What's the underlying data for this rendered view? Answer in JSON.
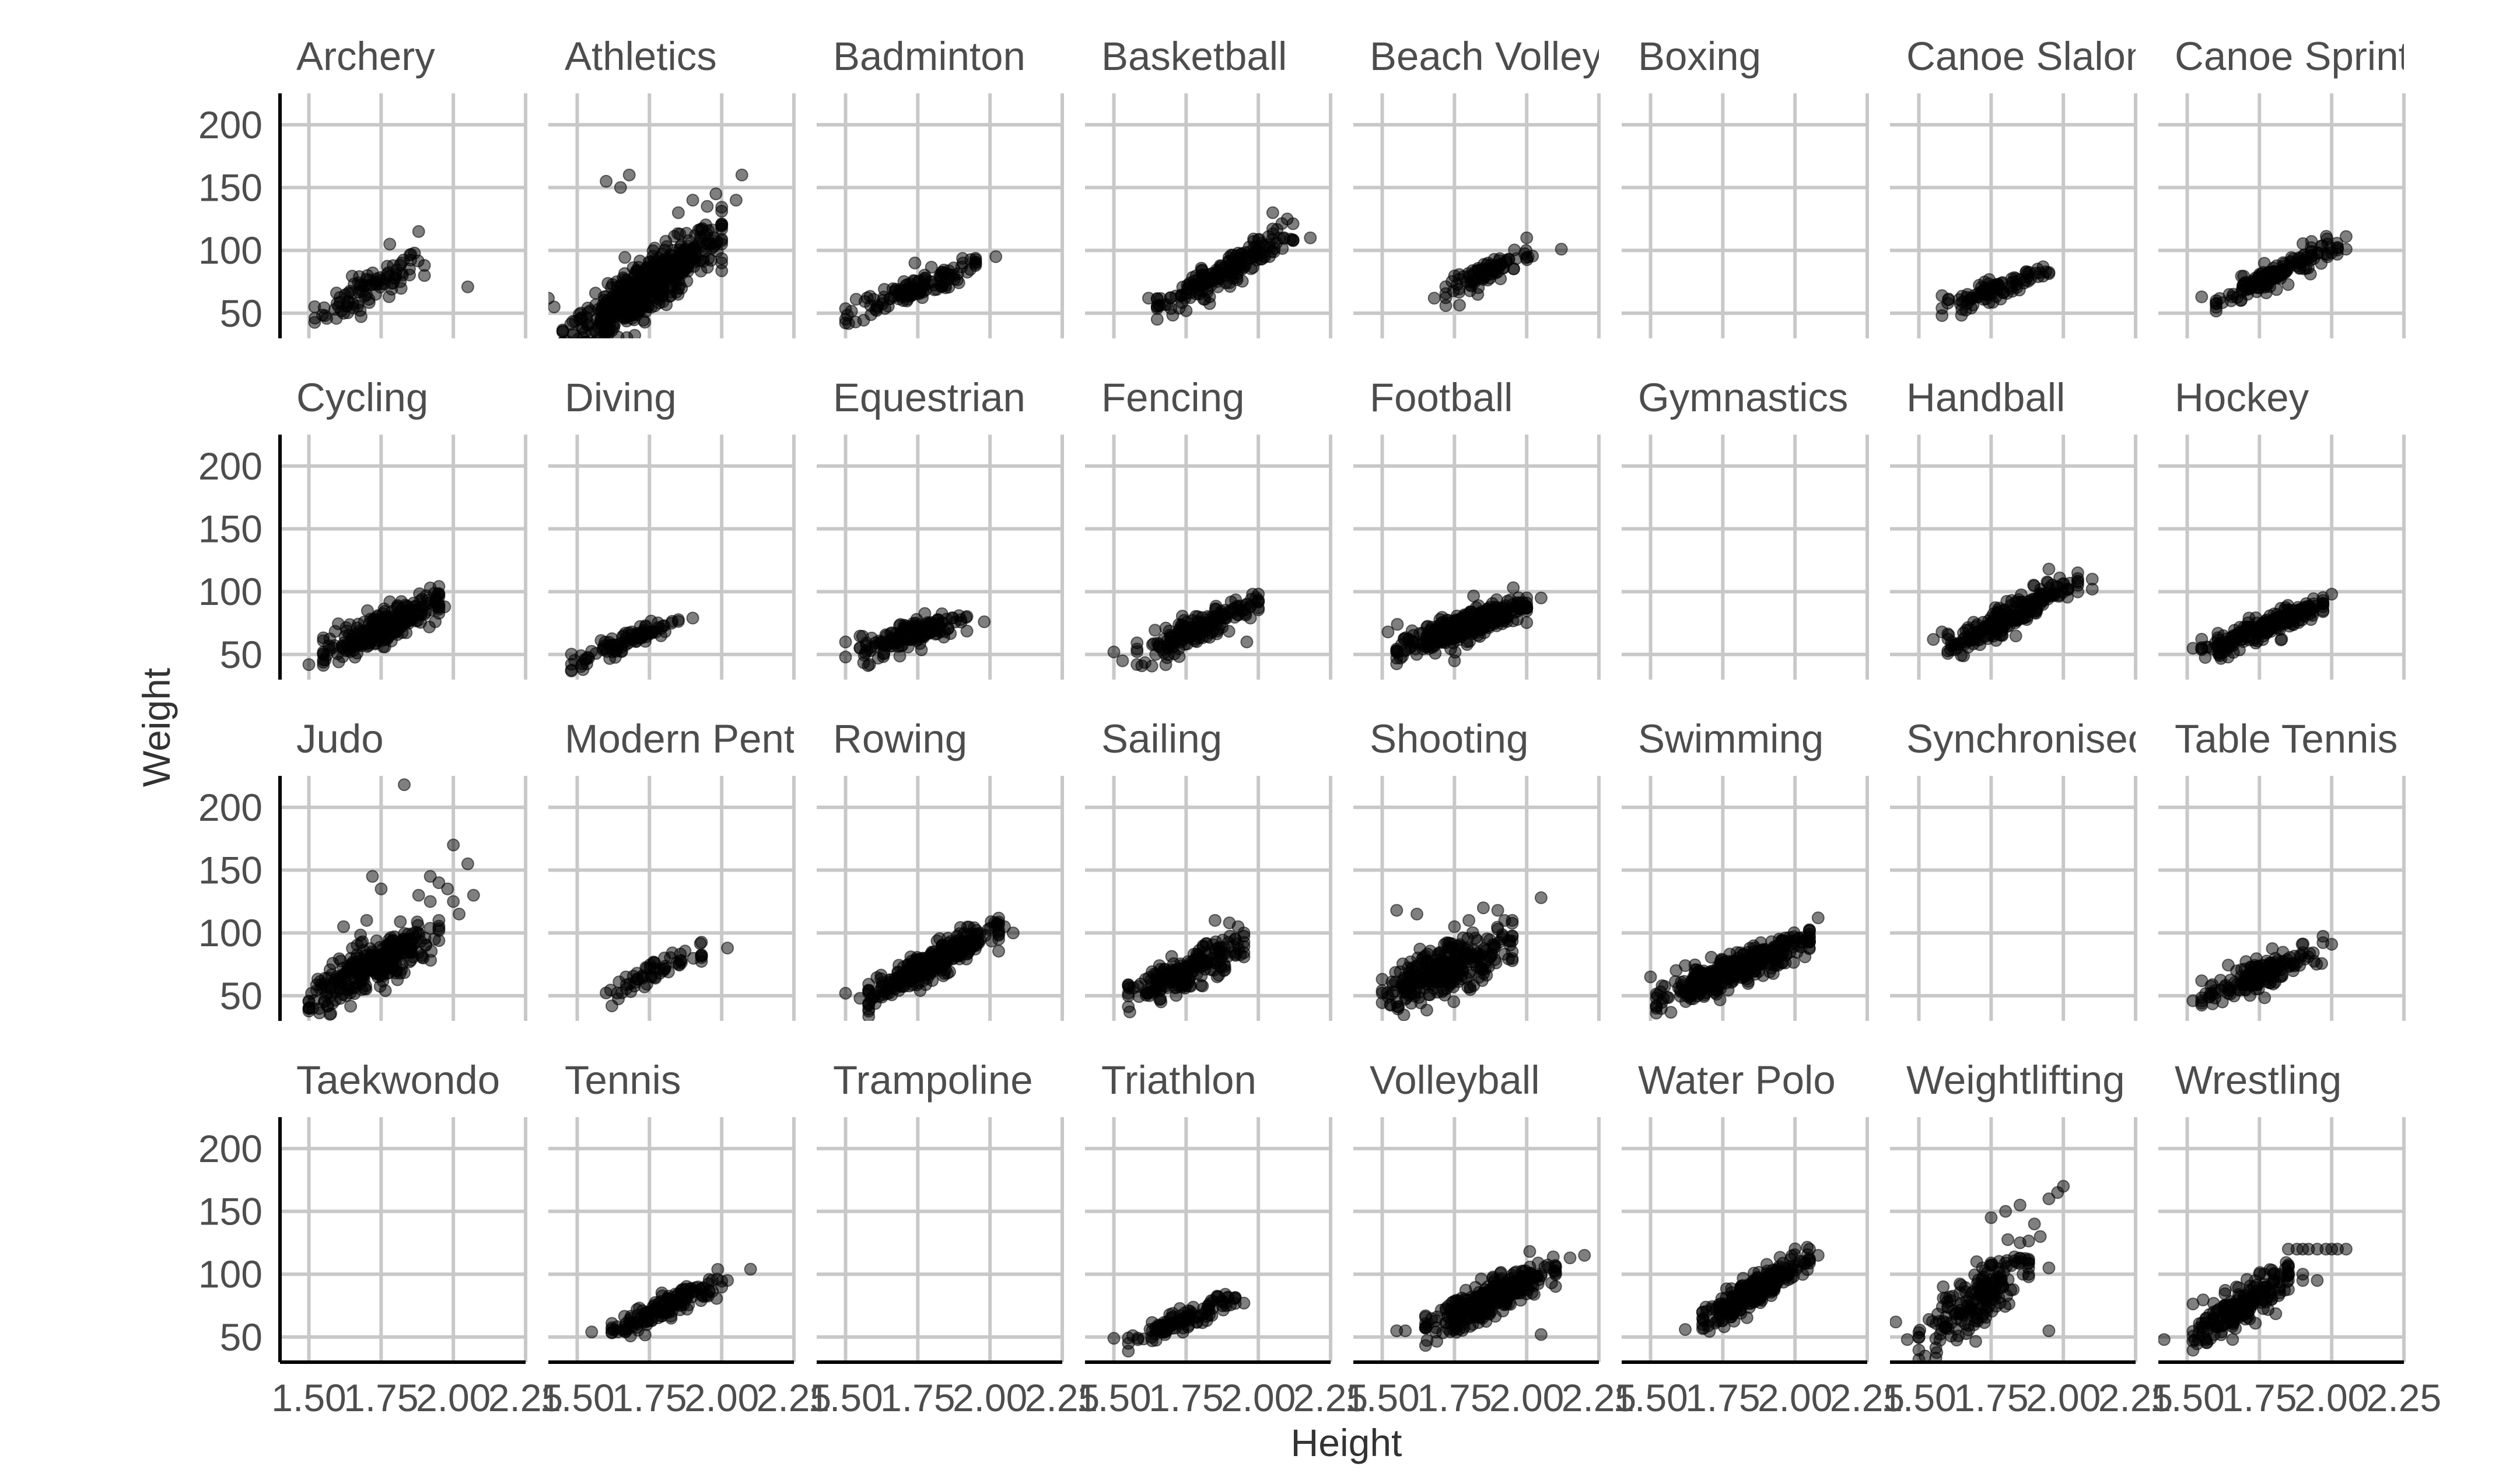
{
  "chart_data": {
    "type": "scatter",
    "xlabel": "Height",
    "ylabel": "Weight",
    "xlim": [
      1.4,
      2.25
    ],
    "ylim": [
      30,
      225
    ],
    "x_ticks": [
      "1.50",
      "1.75",
      "2.00",
      "2.25"
    ],
    "y_ticks": [
      "50",
      "100",
      "150",
      "200"
    ],
    "x_tick_values": [
      1.5,
      1.75,
      2.0,
      2.25
    ],
    "y_tick_values": [
      50,
      100,
      150,
      200
    ],
    "grid": true,
    "facets": [
      {
        "title": "Archery",
        "cluster": {
          "x_range": [
            1.52,
            1.9
          ],
          "slope": 120,
          "intercept": 68,
          "center_x": 1.7,
          "spread": 7,
          "n": 90
        },
        "points": [
          [
            1.88,
            115
          ],
          [
            2.05,
            71
          ],
          [
            1.9,
            80
          ],
          [
            1.82,
            90
          ],
          [
            1.78,
            105
          ]
        ]
      },
      {
        "title": "Athletics",
        "cluster": {
          "x_range": [
            1.45,
            2.0
          ],
          "slope": 160,
          "intercept": 72,
          "center_x": 1.75,
          "spread": 11,
          "n": 600
        },
        "points": [
          [
            1.6,
            155
          ],
          [
            1.68,
            160
          ],
          [
            1.65,
            150
          ],
          [
            2.07,
            160
          ],
          [
            2.05,
            140
          ],
          [
            1.4,
            62
          ],
          [
            1.42,
            55
          ],
          [
            1.9,
            140
          ],
          [
            1.95,
            135
          ],
          [
            1.85,
            130
          ],
          [
            1.98,
            145
          ],
          [
            2.0,
            120
          ]
        ]
      },
      {
        "title": "Badminton",
        "cluster": {
          "x_range": [
            1.5,
            1.95
          ],
          "slope": 90,
          "intercept": 68,
          "center_x": 1.72,
          "spread": 5,
          "n": 120
        },
        "points": [
          [
            2.02,
            95
          ],
          [
            1.95,
            88
          ],
          [
            1.74,
            90
          ]
        ]
      },
      {
        "title": "Basketball",
        "cluster": {
          "x_range": [
            1.65,
            2.12
          ],
          "slope": 130,
          "intercept": 88,
          "center_x": 1.92,
          "spread": 6,
          "n": 200
        },
        "points": [
          [
            1.62,
            62
          ],
          [
            1.75,
            52
          ],
          [
            2.05,
            130
          ],
          [
            2.1,
            125
          ],
          [
            2.18,
            110
          ]
        ]
      },
      {
        "title": "Beach Volley",
        "cluster": {
          "x_range": [
            1.72,
            2.02
          ],
          "slope": 120,
          "intercept": 84,
          "center_x": 1.88,
          "spread": 5,
          "n": 80
        },
        "points": [
          [
            2.12,
            101
          ],
          [
            2.0,
            110
          ],
          [
            1.68,
            62
          ]
        ]
      },
      {
        "title": "Boxing",
        "cluster": null,
        "points": []
      },
      {
        "title": "Canoe Slalom",
        "cluster": {
          "x_range": [
            1.58,
            1.95
          ],
          "slope": 75,
          "intercept": 70,
          "center_x": 1.78,
          "spread": 4,
          "n": 90
        },
        "points": [
          [
            1.58,
            64
          ],
          [
            1.6,
            58
          ],
          [
            1.93,
            87
          ]
        ]
      },
      {
        "title": "Canoe Sprint",
        "cluster": {
          "x_range": [
            1.6,
            2.02
          ],
          "slope": 110,
          "intercept": 82,
          "center_x": 1.82,
          "spread": 5,
          "n": 150
        },
        "points": [
          [
            1.6,
            60
          ],
          [
            1.55,
            63
          ],
          [
            2.05,
            111
          ],
          [
            2.05,
            101
          ]
        ]
      },
      {
        "title": "Cycling",
        "cluster": {
          "x_range": [
            1.55,
            1.95
          ],
          "slope": 95,
          "intercept": 72,
          "center_x": 1.76,
          "spread": 7,
          "n": 250
        },
        "points": [
          [
            1.5,
            42
          ],
          [
            1.92,
            103
          ],
          [
            1.97,
            88
          ]
        ]
      },
      {
        "title": "Diving",
        "cluster": {
          "x_range": [
            1.48,
            1.85
          ],
          "slope": 95,
          "intercept": 60,
          "center_x": 1.66,
          "spread": 4,
          "n": 90
        },
        "points": [
          [
            1.52,
            38
          ],
          [
            1.9,
            79
          ]
        ]
      },
      {
        "title": "Equestrian",
        "cluster": {
          "x_range": [
            1.55,
            1.92
          ],
          "slope": 80,
          "intercept": 68,
          "center_x": 1.75,
          "spread": 6,
          "n": 150
        },
        "points": [
          [
            1.5,
            48
          ],
          [
            1.5,
            60
          ],
          [
            1.98,
            76
          ]
        ]
      },
      {
        "title": "Fencing",
        "cluster": {
          "x_range": [
            1.58,
            2.0
          ],
          "slope": 100,
          "intercept": 72,
          "center_x": 1.8,
          "spread": 6,
          "n": 170
        },
        "points": [
          [
            1.5,
            52
          ],
          [
            1.53,
            45
          ],
          [
            1.96,
            60
          ],
          [
            1.98,
            98
          ]
        ]
      },
      {
        "title": "Football",
        "cluster": {
          "x_range": [
            1.55,
            2.0
          ],
          "slope": 85,
          "intercept": 72,
          "center_x": 1.78,
          "spread": 6,
          "n": 320
        },
        "points": [
          [
            1.52,
            68
          ],
          [
            1.75,
            45
          ],
          [
            2.05,
            95
          ]
        ]
      },
      {
        "title": "Gymnastics",
        "cluster": null,
        "points": []
      },
      {
        "title": "Handball",
        "cluster": {
          "x_range": [
            1.6,
            2.05
          ],
          "slope": 125,
          "intercept": 85,
          "center_x": 1.85,
          "spread": 6,
          "n": 220
        },
        "points": [
          [
            1.55,
            62
          ],
          [
            1.58,
            68
          ],
          [
            2.05,
            115
          ],
          [
            2.1,
            102
          ],
          [
            2.1,
            110
          ],
          [
            1.95,
            118
          ]
        ]
      },
      {
        "title": "Hockey",
        "cluster": {
          "x_range": [
            1.55,
            1.97
          ],
          "slope": 95,
          "intercept": 72,
          "center_x": 1.77,
          "spread": 5,
          "n": 200
        },
        "points": [
          [
            1.52,
            55
          ],
          [
            2.0,
            98
          ]
        ]
      },
      {
        "title": "Judo",
        "cluster": {
          "x_range": [
            1.5,
            1.95
          ],
          "slope": 115,
          "intercept": 78,
          "center_x": 1.76,
          "spread": 9,
          "n": 300
        },
        "points": [
          [
            1.83,
            218
          ],
          [
            2.0,
            170
          ],
          [
            2.05,
            155
          ],
          [
            1.92,
            145
          ],
          [
            1.95,
            140
          ],
          [
            1.98,
            135
          ],
          [
            2.07,
            130
          ],
          [
            2.02,
            115
          ],
          [
            1.88,
            130
          ],
          [
            1.92,
            125
          ],
          [
            1.72,
            145
          ],
          [
            1.75,
            135
          ],
          [
            1.7,
            110
          ],
          [
            1.62,
            105
          ],
          [
            2.0,
            125
          ],
          [
            1.95,
            110
          ]
        ]
      },
      {
        "title": "Modern Pentathlon",
        "cluster": {
          "x_range": [
            1.6,
            1.93
          ],
          "slope": 95,
          "intercept": 70,
          "center_x": 1.78,
          "spread": 4,
          "n": 60
        },
        "points": [
          [
            1.62,
            42
          ],
          [
            2.02,
            88
          ]
        ]
      },
      {
        "title": "Rowing",
        "cluster": {
          "x_range": [
            1.58,
            2.03
          ],
          "slope": 120,
          "intercept": 82,
          "center_x": 1.85,
          "spread": 6,
          "n": 350
        },
        "points": [
          [
            1.5,
            52
          ],
          [
            1.55,
            48
          ],
          [
            2.05,
            105
          ],
          [
            2.08,
            100
          ]
        ]
      },
      {
        "title": "Sailing",
        "cluster": {
          "x_range": [
            1.55,
            1.95
          ],
          "slope": 100,
          "intercept": 72,
          "center_x": 1.78,
          "spread": 7,
          "n": 200
        },
        "points": [
          [
            1.85,
            110
          ],
          [
            1.9,
            108
          ],
          [
            1.95,
            100
          ],
          [
            1.93,
            105
          ]
        ]
      },
      {
        "title": "Shooting",
        "cluster": {
          "x_range": [
            1.5,
            1.95
          ],
          "slope": 95,
          "intercept": 72,
          "center_x": 1.72,
          "spread": 10,
          "n": 300
        },
        "points": [
          [
            1.55,
            118
          ],
          [
            1.62,
            115
          ],
          [
            1.85,
            120
          ],
          [
            1.9,
            118
          ],
          [
            2.05,
            128
          ],
          [
            1.95,
            110
          ],
          [
            1.8,
            110
          ],
          [
            1.75,
            105
          ]
        ]
      },
      {
        "title": "Swimming",
        "cluster": {
          "x_range": [
            1.52,
            2.05
          ],
          "slope": 90,
          "intercept": 72,
          "center_x": 1.8,
          "spread": 6,
          "n": 400
        },
        "points": [
          [
            1.5,
            65
          ],
          [
            1.52,
            42
          ],
          [
            2.08,
            112
          ],
          [
            2.05,
            102
          ]
        ]
      },
      {
        "title": "Synchronised Swimming",
        "cluster": null,
        "points": []
      },
      {
        "title": "Table Tennis",
        "cluster": {
          "x_range": [
            1.55,
            1.97
          ],
          "slope": 90,
          "intercept": 68,
          "center_x": 1.76,
          "spread": 6,
          "n": 160
        },
        "points": [
          [
            1.52,
            46
          ],
          [
            2.0,
            91
          ]
        ]
      },
      {
        "title": "Taekwondo",
        "cluster": null,
        "points": []
      },
      {
        "title": "Tennis",
        "cluster": {
          "x_range": [
            1.62,
            2.0
          ],
          "slope": 110,
          "intercept": 75,
          "center_x": 1.82,
          "spread": 5,
          "n": 150
        },
        "points": [
          [
            1.55,
            54
          ],
          [
            2.1,
            104
          ],
          [
            2.02,
            95
          ]
        ]
      },
      {
        "title": "Trampoline",
        "cluster": null,
        "points": []
      },
      {
        "title": "Triathlon",
        "cluster": {
          "x_range": [
            1.55,
            1.92
          ],
          "slope": 90,
          "intercept": 62,
          "center_x": 1.72,
          "spread": 4,
          "n": 110
        },
        "points": [
          [
            1.5,
            49
          ],
          [
            1.95,
            77
          ]
        ]
      },
      {
        "title": "Volleyball",
        "cluster": {
          "x_range": [
            1.65,
            2.1
          ],
          "slope": 110,
          "intercept": 85,
          "center_x": 1.92,
          "spread": 7,
          "n": 320
        },
        "points": [
          [
            1.55,
            55
          ],
          [
            1.58,
            55
          ],
          [
            2.15,
            113
          ],
          [
            2.2,
            115
          ],
          [
            2.05,
            52
          ]
        ]
      },
      {
        "title": "Water Polo",
        "cluster": {
          "x_range": [
            1.68,
            2.05
          ],
          "slope": 135,
          "intercept": 88,
          "center_x": 1.87,
          "spread": 6,
          "n": 250
        },
        "points": [
          [
            1.62,
            56
          ],
          [
            1.68,
            60
          ],
          [
            2.08,
            115
          ],
          [
            2.05,
            120
          ]
        ]
      },
      {
        "title": "Weightlifting",
        "cluster": {
          "x_range": [
            1.5,
            1.88
          ],
          "slope": 170,
          "intercept": 78,
          "center_x": 1.68,
          "spread": 12,
          "n": 180
        },
        "points": [
          [
            1.8,
            150
          ],
          [
            1.85,
            155
          ],
          [
            1.75,
            145
          ],
          [
            1.9,
            140
          ],
          [
            1.95,
            160
          ],
          [
            1.98,
            165
          ],
          [
            2.0,
            170
          ],
          [
            1.92,
            130
          ],
          [
            1.95,
            105
          ],
          [
            1.88,
            105
          ],
          [
            1.85,
            125
          ],
          [
            1.42,
            62
          ],
          [
            1.46,
            48
          ],
          [
            1.5,
            50
          ],
          [
            1.95,
            55
          ],
          [
            1.7,
            110
          ],
          [
            1.72,
            105
          ]
        ]
      },
      {
        "title": "Wrestling",
        "cluster": {
          "x_range": [
            1.52,
            1.85
          ],
          "slope": 140,
          "intercept": 76,
          "center_x": 1.7,
          "spread": 8,
          "n": 200
        },
        "points": [
          [
            1.42,
            48
          ],
          [
            1.85,
            120
          ],
          [
            1.88,
            120
          ],
          [
            1.9,
            120
          ],
          [
            1.92,
            120
          ],
          [
            1.95,
            120
          ],
          [
            1.98,
            120
          ],
          [
            2.0,
            120
          ],
          [
            2.02,
            120
          ],
          [
            2.05,
            120
          ],
          [
            1.75,
            100
          ],
          [
            1.8,
            100
          ],
          [
            1.85,
            100
          ],
          [
            1.9,
            100
          ],
          [
            1.8,
            95
          ],
          [
            1.85,
            95
          ],
          [
            1.9,
            95
          ],
          [
            1.95,
            95
          ],
          [
            1.75,
            85
          ],
          [
            1.82,
            85
          ]
        ]
      }
    ]
  }
}
